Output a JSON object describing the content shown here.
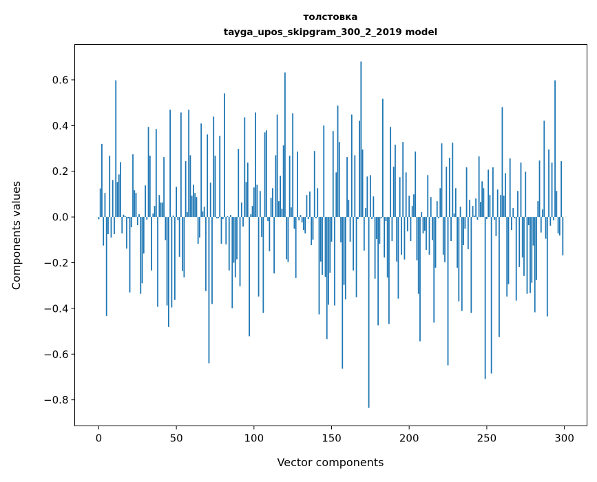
{
  "chart_data": {
    "type": "bar",
    "title": "толстовка",
    "subtitle": "tayga_upos_skipgram_300_2_2019 model",
    "xlabel": "Vector components",
    "ylabel": "Components values",
    "xlim": [
      -15.5,
      314.6
    ],
    "ylim": [
      -0.914,
      0.755
    ],
    "xticks": [
      0,
      50,
      100,
      150,
      200,
      250,
      300
    ],
    "xtick_labels": [
      "0",
      "50",
      "100",
      "150",
      "200",
      "250",
      "300"
    ],
    "yticks": [
      0.6,
      0.4,
      0.2,
      0.0,
      -0.2,
      -0.4,
      -0.6,
      -0.8
    ],
    "ytick_labels": [
      "0.6",
      "0.4",
      "0.2",
      "0.0",
      "−0.2",
      "−0.4",
      "−0.6",
      "−0.8"
    ],
    "grid": false,
    "bar_color": "#1f77b4",
    "values": [
      -0.01,
      0.125,
      0.32,
      -0.125,
      0.105,
      -0.433,
      -0.075,
      0.268,
      -0.09,
      0.162,
      -0.075,
      0.598,
      0.153,
      0.186,
      0.24,
      -0.072,
      0.01,
      0.003,
      -0.138,
      -0.006,
      -0.33,
      -0.045,
      0.274,
      0.117,
      0.105,
      -0.036,
      0.012,
      -0.336,
      -0.29,
      -0.16,
      0.138,
      -0.012,
      0.394,
      0.268,
      -0.234,
      0.015,
      0.048,
      0.385,
      -0.393,
      0.096,
      0.063,
      0.063,
      0.262,
      -0.102,
      -0.387,
      -0.481,
      0.469,
      -0.396,
      0.006,
      -0.363,
      0.132,
      -0.014,
      -0.174,
      0.457,
      -0.237,
      -0.264,
      0.244,
      0.021,
      0.469,
      0.27,
      0.093,
      0.141,
      0.105,
      0.087,
      -0.117,
      -0.09,
      0.409,
      0.024,
      0.045,
      -0.324,
      0.361,
      -0.64,
      0.15,
      -0.381,
      0.439,
      0.268,
      -0.006,
      -0.006,
      0.355,
      -0.117,
      -0.009,
      0.541,
      -0.12,
      0.003,
      -0.234,
      0.009,
      -0.399,
      -0.2,
      -0.264,
      -0.185,
      0.298,
      -0.303,
      0.063,
      -0.042,
      0.436,
      0.153,
      0.238,
      -0.522,
      0.012,
      0.048,
      0.129,
      0.457,
      0.141,
      -0.348,
      0.114,
      -0.087,
      -0.42,
      0.37,
      0.379,
      -0.018,
      -0.15,
      0.084,
      0.126,
      -0.247,
      0.27,
      0.448,
      0.069,
      0.18,
      0.036,
      0.313,
      0.632,
      -0.185,
      -0.197,
      0.268,
      0.042,
      0.454,
      -0.051,
      -0.267,
      0.286,
      -0.015,
      0.009,
      -0.024,
      -0.057,
      -0.072,
      0.096,
      -0.009,
      0.111,
      -0.123,
      -0.099,
      0.289,
      -0.006,
      0.126,
      -0.426,
      -0.195,
      -0.253,
      0.4,
      -0.262,
      -0.534,
      -0.384,
      -0.244,
      -0.108,
      0.376,
      -0.387,
      0.195,
      0.487,
      0.328,
      -0.111,
      -0.664,
      -0.297,
      -0.36,
      0.262,
      0.075,
      -0.108,
      0.448,
      -0.234,
      0.27,
      -0.351,
      -0.009,
      0.421,
      0.68,
      0.295,
      -0.147,
      0.039,
      0.177,
      -0.835,
      0.183,
      -0.009,
      0.09,
      -0.27,
      -0.096,
      -0.474,
      -0.117,
      -0.006,
      0.517,
      -0.177,
      -0.018,
      -0.265,
      -0.468,
      0.394,
      -0.105,
      0.22,
      0.316,
      -0.195,
      -0.357,
      0.174,
      -0.165,
      0.328,
      -0.186,
      0.195,
      -0.063,
      0.093,
      -0.105,
      0.048,
      0.099,
      0.286,
      -0.19,
      -0.336,
      -0.544,
      0.021,
      -0.072,
      -0.06,
      -0.144,
      0.183,
      -0.165,
      0.087,
      -0.102,
      -0.462,
      -0.222,
      0.069,
      -0.006,
      0.126,
      0.322,
      -0.165,
      -0.198,
      0.22,
      -0.649,
      0.259,
      -0.105,
      0.325,
      0.015,
      0.126,
      -0.222,
      -0.369,
      0.045,
      -0.411,
      -0.123,
      -0.051,
      0.217,
      -0.141,
      0.075,
      -0.42,
      0.048,
      0.006,
      0.081,
      -0.012,
      0.265,
      0.066,
      0.156,
      0.126,
      -0.709,
      -0.009,
      0.207,
      0.096,
      -0.685,
      0.217,
      -0.012,
      -0.084,
      0.12,
      -0.525,
      0.096,
      0.481,
      0.093,
      0.192,
      -0.348,
      -0.294,
      0.256,
      -0.057,
      0.039,
      -0.006,
      -0.366,
      0.114,
      -0.219,
      0.238,
      -0.177,
      -0.258,
      0.198,
      -0.336,
      -0.036,
      -0.333,
      -0.288,
      -0.125,
      -0.417,
      -0.276,
      0.069,
      0.247,
      -0.068,
      0.033,
      0.421,
      -0.095,
      -0.435,
      0.295,
      -0.038,
      0.238,
      -0.015,
      0.598,
      0.114,
      -0.072,
      -0.081,
      0.244,
      -0.168
    ]
  }
}
